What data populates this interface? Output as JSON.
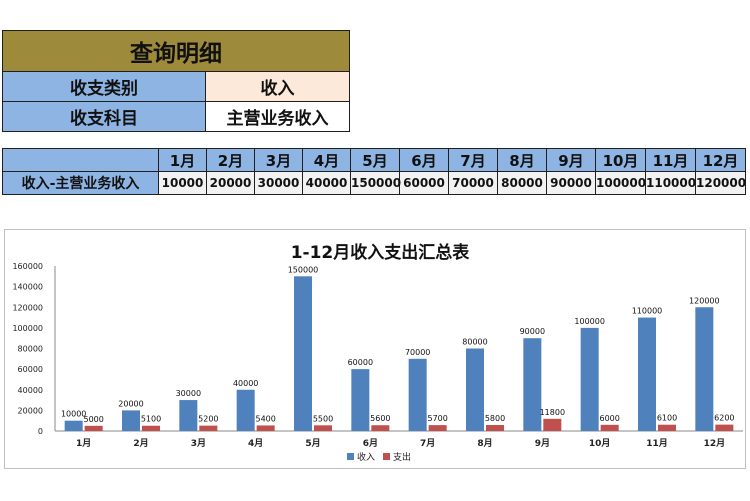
{
  "query": {
    "title": "查询明细",
    "rows": [
      {
        "label": "收支类别",
        "value": "收入"
      },
      {
        "label": "收支科目",
        "value": "主营业务收入"
      }
    ]
  },
  "table": {
    "row_label": "收入-主营业务收入",
    "months": [
      "1月",
      "2月",
      "3月",
      "4月",
      "5月",
      "6月",
      "7月",
      "8月",
      "9月",
      "10月",
      "11月",
      "12月"
    ],
    "values": [
      "10000",
      "20000",
      "30000",
      "40000",
      "150000",
      "60000",
      "70000",
      "80000",
      "90000",
      "100000",
      "110000",
      "120000"
    ]
  },
  "colors": {
    "income": "#4f81bd",
    "expense": "#c0504d",
    "label_blue": "#8db4e2",
    "title_olive": "#9e8a3b",
    "value_peach": "#fde9d9"
  },
  "chart_data": {
    "type": "bar",
    "title": "1-12月收入支出汇总表",
    "categories": [
      "1月",
      "2月",
      "3月",
      "4月",
      "5月",
      "6月",
      "7月",
      "8月",
      "9月",
      "10月",
      "11月",
      "12月"
    ],
    "series": [
      {
        "name": "收入",
        "values": [
          10000,
          20000,
          30000,
          40000,
          150000,
          60000,
          70000,
          80000,
          90000,
          100000,
          110000,
          120000
        ]
      },
      {
        "name": "支出",
        "values": [
          5000,
          5100,
          5200,
          5400,
          5500,
          5600,
          5700,
          5800,
          11800,
          6000,
          6100,
          6200
        ]
      }
    ],
    "ylim": [
      0,
      160000
    ],
    "yticks": [
      "0",
      "20000",
      "40000",
      "60000",
      "80000",
      "100000",
      "120000",
      "140000",
      "160000"
    ],
    "legend": "bottom",
    "grid": false
  }
}
